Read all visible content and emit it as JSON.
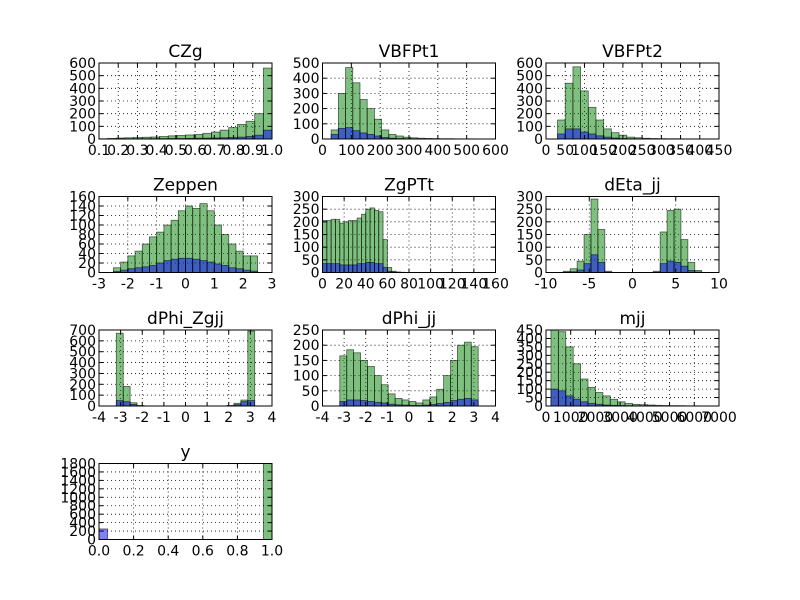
{
  "chart_data": [
    {
      "type": "histogram",
      "title": "CZg",
      "bins": [
        0.1,
        0.145,
        0.19,
        0.235,
        0.28,
        0.325,
        0.37,
        0.415,
        0.46,
        0.505,
        0.55,
        0.595,
        0.64,
        0.685,
        0.73,
        0.775,
        0.82,
        0.865,
        0.91,
        0.955,
        1.0
      ],
      "series": [
        {
          "color": "#008000",
          "values": [
            2,
            5,
            8,
            10,
            12,
            14,
            16,
            20,
            25,
            28,
            32,
            36,
            45,
            55,
            70,
            90,
            115,
            140,
            200,
            560
          ]
        },
        {
          "color": "#0000ff",
          "values": [
            0,
            0,
            1,
            1,
            2,
            2,
            3,
            3,
            4,
            4,
            5,
            6,
            7,
            8,
            10,
            12,
            15,
            20,
            30,
            70
          ]
        }
      ],
      "xlim": [
        0.1,
        1.0
      ],
      "xticks": [
        0.1,
        0.2,
        0.3,
        0.4,
        0.5,
        0.6,
        0.7,
        0.8,
        0.9,
        {
          "value": 1,
          "label": "1.0"
        }
      ],
      "ylim": [
        0,
        600
      ],
      "yticks": [
        0,
        100,
        200,
        300,
        400,
        500,
        600
      ],
      "grid": true
    },
    {
      "type": "histogram",
      "title": "VBFPt1",
      "bins": [
        30,
        55,
        80,
        105,
        130,
        155,
        180,
        205,
        230,
        255,
        280,
        305,
        330,
        355,
        380,
        405,
        430,
        455,
        480,
        505,
        530
      ],
      "series": [
        {
          "color": "#008000",
          "values": [
            60,
            300,
            470,
            370,
            260,
            200,
            130,
            60,
            30,
            20,
            12,
            8,
            5,
            4,
            3,
            2,
            2,
            1,
            1,
            1
          ]
        },
        {
          "color": "#0000ff",
          "values": [
            30,
            70,
            75,
            55,
            40,
            30,
            20,
            10,
            5,
            3,
            2,
            1,
            1,
            1,
            0,
            0,
            0,
            0,
            0,
            0
          ]
        }
      ],
      "xlim": [
        0,
        600
      ],
      "xticks": [
        0,
        100,
        200,
        300,
        400,
        500,
        600
      ],
      "ylim": [
        0,
        500
      ],
      "yticks": [
        0,
        100,
        200,
        300,
        400,
        500
      ],
      "grid": true
    },
    {
      "type": "histogram",
      "title": "VBFPt2",
      "bins": [
        30,
        50,
        70,
        90,
        110,
        130,
        150,
        170,
        190,
        210,
        230,
        250,
        270,
        290,
        310,
        330,
        350,
        370,
        390,
        410,
        430
      ],
      "series": [
        {
          "color": "#008000",
          "values": [
            150,
            440,
            570,
            380,
            250,
            150,
            80,
            50,
            30,
            15,
            10,
            6,
            4,
            3,
            2,
            2,
            1,
            1,
            0,
            1
          ]
        },
        {
          "color": "#0000ff",
          "values": [
            40,
            80,
            80,
            55,
            40,
            25,
            15,
            8,
            4,
            2,
            1,
            1,
            0,
            0,
            0,
            0,
            0,
            0,
            0,
            0
          ]
        }
      ],
      "xlim": [
        0,
        450
      ],
      "xticks": [
        0,
        50,
        100,
        150,
        200,
        250,
        300,
        350,
        400,
        450
      ],
      "ylim": [
        0,
        600
      ],
      "yticks": [
        0,
        100,
        200,
        300,
        400,
        500,
        600
      ],
      "grid": true
    },
    {
      "type": "histogram",
      "title": "Zeppen",
      "bins": [
        -2.5,
        -2.25,
        -2,
        -1.75,
        -1.5,
        -1.25,
        -1,
        -0.75,
        -0.5,
        -0.25,
        0,
        0.25,
        0.5,
        0.75,
        1,
        1.25,
        1.5,
        1.75,
        2,
        2.25,
        2.5
      ],
      "series": [
        {
          "color": "#008000",
          "values": [
            10,
            22,
            35,
            45,
            60,
            75,
            85,
            100,
            110,
            130,
            140,
            135,
            145,
            130,
            100,
            80,
            60,
            45,
            35,
            35
          ]
        },
        {
          "color": "#0000ff",
          "values": [
            2,
            5,
            8,
            10,
            12,
            15,
            20,
            25,
            28,
            30,
            30,
            28,
            25,
            22,
            18,
            15,
            10,
            8,
            5,
            3
          ]
        }
      ],
      "xlim": [
        -3,
        3
      ],
      "xticks": [
        -3,
        -2,
        -1,
        0,
        1,
        2,
        3
      ],
      "ylim": [
        0,
        160
      ],
      "yticks": [
        0,
        20,
        40,
        60,
        80,
        100,
        120,
        140,
        160
      ],
      "grid": true
    },
    {
      "type": "histogram",
      "title": "ZgPTt",
      "bins": [
        0,
        4,
        8,
        12,
        16,
        20,
        24,
        28,
        32,
        36,
        40,
        44,
        48,
        52,
        56,
        60,
        64,
        68,
        72,
        76,
        80
      ],
      "series": [
        {
          "color": "#008000",
          "values": [
            205,
            205,
            210,
            210,
            195,
            200,
            205,
            205,
            215,
            230,
            250,
            255,
            245,
            240,
            130,
            20,
            5,
            2,
            1,
            0
          ]
        },
        {
          "color": "#0000ff",
          "values": [
            35,
            35,
            35,
            35,
            30,
            30,
            30,
            30,
            35,
            35,
            40,
            40,
            35,
            35,
            20,
            5,
            2,
            1,
            0,
            0
          ]
        }
      ],
      "xlim": [
        0,
        160
      ],
      "xticks": [
        0,
        20,
        40,
        60,
        80,
        100,
        120,
        140,
        160
      ],
      "ylim": [
        0,
        300
      ],
      "yticks": [
        0,
        50,
        100,
        150,
        200,
        250,
        300
      ],
      "grid": true
    },
    {
      "type": "histogram",
      "title": "dEta_jj",
      "bins": [
        -8,
        -7.2,
        -6.4,
        -5.6,
        -4.8,
        -4,
        -3.2,
        -2.4,
        -1.6,
        -0.8,
        0,
        0.8,
        1.6,
        2.4,
        3.2,
        4,
        4.8,
        5.6,
        6.4,
        7.2,
        8
      ],
      "series": [
        {
          "color": "#008000",
          "values": [
            5,
            15,
            45,
            150,
            290,
            170,
            5,
            0,
            0,
            0,
            0,
            0,
            0,
            5,
            160,
            245,
            250,
            130,
            40,
            8
          ]
        },
        {
          "color": "#0000ff",
          "values": [
            1,
            3,
            10,
            35,
            70,
            40,
            1,
            0,
            0,
            0,
            0,
            0,
            0,
            1,
            35,
            45,
            40,
            25,
            8,
            2
          ]
        }
      ],
      "xlim": [
        -10,
        10
      ],
      "xticks": [
        -10,
        -5,
        0,
        5,
        10
      ],
      "ylim": [
        0,
        300
      ],
      "yticks": [
        0,
        50,
        100,
        150,
        200,
        250,
        300
      ],
      "grid": true
    },
    {
      "type": "histogram",
      "title": "dPhi_Zgjj",
      "bins": [
        -3.2,
        -2.88,
        -2.56,
        -2.24,
        -1.92,
        -1.6,
        -1.28,
        -0.96,
        -0.64,
        -0.32,
        0,
        0.32,
        0.64,
        0.96,
        1.28,
        1.6,
        1.92,
        2.24,
        2.56,
        2.88,
        3.2
      ],
      "series": [
        {
          "color": "#008000",
          "values": [
            670,
            180,
            30,
            5,
            0,
            0,
            0,
            0,
            0,
            0,
            0,
            0,
            0,
            0,
            0,
            0,
            5,
            25,
            55,
            690
          ]
        },
        {
          "color": "#0000ff",
          "values": [
            50,
            40,
            15,
            2,
            0,
            0,
            0,
            0,
            0,
            0,
            0,
            0,
            0,
            0,
            0,
            0,
            2,
            12,
            40,
            50
          ]
        }
      ],
      "xlim": [
        -4,
        4
      ],
      "xticks": [
        -4,
        -3,
        -2,
        -1,
        0,
        1,
        2,
        3,
        4
      ],
      "ylim": [
        0,
        700
      ],
      "yticks": [
        0,
        100,
        200,
        300,
        400,
        500,
        600,
        700
      ],
      "grid": true
    },
    {
      "type": "histogram",
      "title": "dPhi_jj",
      "bins": [
        -3.2,
        -2.88,
        -2.56,
        -2.24,
        -1.92,
        -1.6,
        -1.28,
        -0.96,
        -0.64,
        -0.32,
        0,
        0.32,
        0.64,
        0.96,
        1.28,
        1.6,
        1.92,
        2.24,
        2.56,
        2.88,
        3.2
      ],
      "series": [
        {
          "color": "#008000",
          "values": [
            165,
            185,
            175,
            150,
            130,
            100,
            70,
            40,
            25,
            20,
            15,
            10,
            20,
            30,
            55,
            100,
            150,
            200,
            210,
            195
          ]
        },
        {
          "color": "#0000ff",
          "values": [
            15,
            20,
            20,
            18,
            15,
            12,
            10,
            6,
            4,
            3,
            2,
            2,
            3,
            5,
            8,
            12,
            18,
            22,
            25,
            20
          ]
        }
      ],
      "xlim": [
        -4,
        4
      ],
      "xticks": [
        -4,
        -3,
        -2,
        -1,
        0,
        1,
        2,
        3,
        4
      ],
      "ylim": [
        0,
        250
      ],
      "yticks": [
        0,
        50,
        100,
        150,
        200,
        250
      ],
      "grid": true
    },
    {
      "type": "histogram",
      "title": "mjj",
      "bins": [
        200,
        500,
        800,
        1100,
        1400,
        1700,
        2000,
        2300,
        2600,
        2900,
        3200,
        3500,
        3800,
        4100,
        4400,
        4700,
        5000,
        5300,
        5600,
        5900,
        6200
      ],
      "series": [
        {
          "color": "#008000",
          "values": [
            450,
            440,
            350,
            250,
            160,
            110,
            80,
            60,
            40,
            25,
            15,
            10,
            8,
            6,
            4,
            3,
            2,
            2,
            1,
            1
          ]
        },
        {
          "color": "#0000ff",
          "values": [
            100,
            90,
            60,
            40,
            25,
            15,
            10,
            6,
            4,
            3,
            2,
            1,
            1,
            0,
            0,
            0,
            0,
            0,
            0,
            0
          ]
        }
      ],
      "xlim": [
        0,
        7000
      ],
      "xticks": [
        0,
        1000,
        2000,
        3000,
        4000,
        5000,
        6000,
        7000
      ],
      "ylim": [
        0,
        450
      ],
      "yticks": [
        0,
        50,
        100,
        150,
        200,
        250,
        300,
        350,
        400,
        450
      ],
      "grid": true
    },
    {
      "type": "histogram",
      "title": "y",
      "bins": [
        0,
        0.05,
        0.1,
        0.15,
        0.2,
        0.25,
        0.3,
        0.35,
        0.4,
        0.45,
        0.5,
        0.55,
        0.6,
        0.65,
        0.7,
        0.75,
        0.8,
        0.85,
        0.9,
        0.95,
        1
      ],
      "series": [
        {
          "color": "#008000",
          "values": [
            0,
            0,
            0,
            0,
            0,
            0,
            0,
            0,
            0,
            0,
            0,
            0,
            0,
            0,
            0,
            0,
            0,
            0,
            0,
            1800
          ]
        },
        {
          "color": "#0000ff",
          "values": [
            250,
            0,
            0,
            0,
            0,
            0,
            0,
            0,
            0,
            0,
            0,
            0,
            0,
            0,
            0,
            0,
            0,
            0,
            0,
            0
          ]
        }
      ],
      "xlim": [
        0,
        1
      ],
      "xticks": [
        {
          "value": 0,
          "label": "0.0"
        },
        0.2,
        0.4,
        0.6,
        0.8,
        {
          "value": 1,
          "label": "1.0"
        }
      ],
      "ylim": [
        0,
        1800
      ],
      "yticks": [
        0,
        200,
        400,
        600,
        800,
        1000,
        1200,
        1400,
        1600,
        1800
      ],
      "grid": true
    }
  ]
}
